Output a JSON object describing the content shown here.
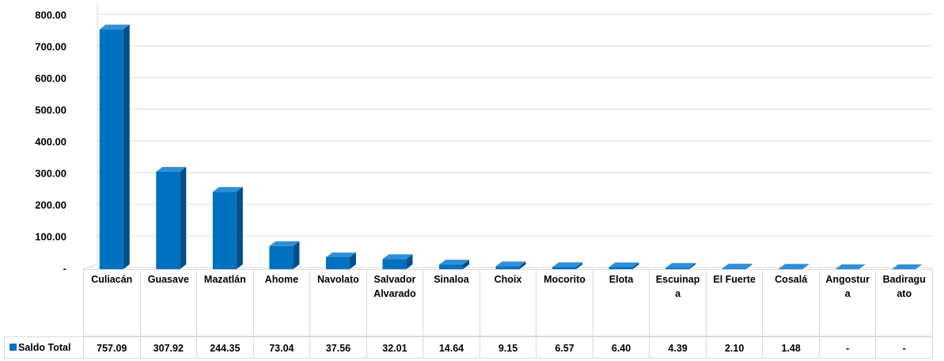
{
  "chart_data": {
    "type": "bar",
    "categories": [
      "Culiacán",
      "Guasave",
      "Mazatlán",
      "Ahome",
      "Navolato",
      "Salvador Alvarado",
      "Sinaloa",
      "Choix",
      "Mocorito",
      "Elota",
      "Escuinapa",
      "El Fuerte",
      "Cosalá",
      "Angostura",
      "Badiraguato"
    ],
    "series": [
      {
        "name": "Saldo Total",
        "color": "#0070c0",
        "values": [
          757.09,
          307.92,
          244.35,
          73.04,
          37.56,
          32.01,
          14.64,
          9.15,
          6.57,
          6.4,
          4.39,
          2.1,
          1.48,
          0,
          0
        ],
        "value_labels": [
          "757.09",
          "307.92",
          "244.35",
          "73.04",
          "37.56",
          "32.01",
          "14.64",
          "9.15",
          "6.57",
          "6.40",
          "4.39",
          "2.10",
          "1.48",
          "-",
          "-"
        ]
      }
    ],
    "ylim": [
      0,
      800
    ],
    "yticks": [
      {
        "value": 0,
        "label": "-"
      },
      {
        "value": 100,
        "label": "100.00"
      },
      {
        "value": 200,
        "label": "200.00"
      },
      {
        "value": 300,
        "label": "300.00"
      },
      {
        "value": 400,
        "label": "400.00"
      },
      {
        "value": 500,
        "label": "500.00"
      },
      {
        "value": 600,
        "label": "600.00"
      },
      {
        "value": 700,
        "label": "700.00"
      },
      {
        "value": 800,
        "label": "800.00"
      }
    ],
    "grid": true
  }
}
